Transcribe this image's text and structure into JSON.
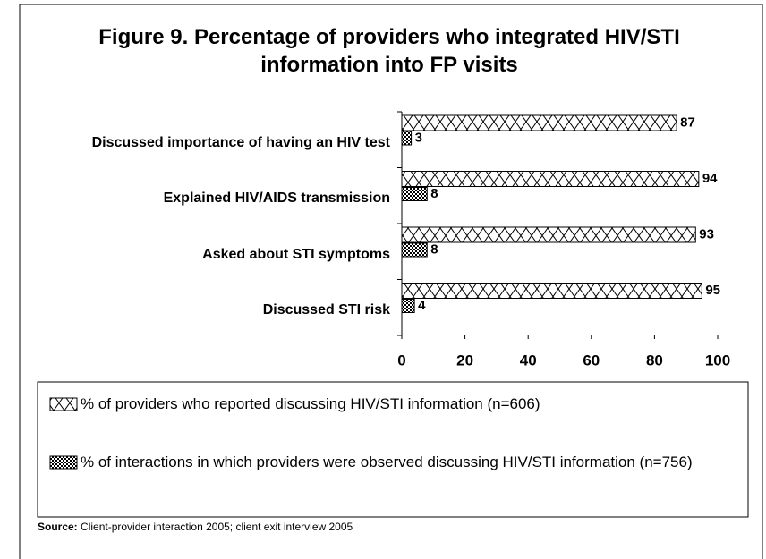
{
  "chart_data": {
    "type": "bar",
    "orientation": "horizontal",
    "title": "Figure 9. Percentage of providers who integrated HIV/STI information into FP visits",
    "categories": [
      "Discussed importance of having an HIV test",
      "Explained HIV/AIDS transmission",
      "Asked about STI symptoms",
      "Discussed STI risk"
    ],
    "series": [
      {
        "name": "% of providers who reported discussing HIV/STI information (n=606)",
        "color": "#000000",
        "pattern": "zigzag",
        "values": [
          87,
          94,
          93,
          95
        ]
      },
      {
        "name": "% of interactions in which providers were observed discussing HIV/STI information (n=756)",
        "color": "#000000",
        "pattern": "checker",
        "values": [
          3,
          8,
          8,
          4
        ]
      }
    ],
    "xlim": [
      0,
      100
    ],
    "xticks": [
      0,
      20,
      40,
      60,
      80,
      100
    ],
    "grid": false,
    "source_label": "Source:",
    "source": "Client-provider interaction 2005; client exit interview 2005"
  }
}
